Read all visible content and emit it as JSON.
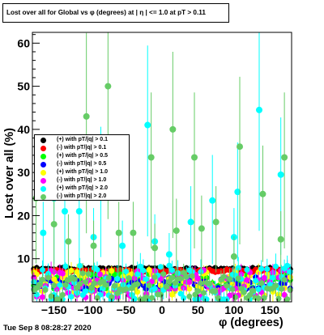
{
  "title": "Lost over all for Global vs φ (degrees) at | η | <= 1.0 at pT > 0.11",
  "timestamp": "Tue Sep  8 08:28:27 2020",
  "chart_data": {
    "type": "scatter",
    "title": "Lost over all for Global vs φ (degrees) at | η | <= 1.0 at pT > 0.11",
    "xlabel": "φ (degrees)",
    "ylabel": "Lost over all (%)",
    "xlim": [
      -180,
      180
    ],
    "ylim": [
      0,
      62.5
    ],
    "xticks": [
      -150,
      -100,
      -50,
      0,
      50,
      100,
      150
    ],
    "yticks": [
      10,
      20,
      30,
      40,
      50,
      60
    ],
    "grid": false,
    "legend_position": "left",
    "series": [
      {
        "name": "(+) with pT/|q| > 0.1",
        "color": "#000000",
        "base": 7.6,
        "amp": 0.3,
        "seed": 1
      },
      {
        "name": "(-) with pT/|q| > 0.1",
        "color": "#ff0000",
        "base": 7.2,
        "amp": 0.3,
        "seed": 2
      },
      {
        "name": "(+) with pT/|q| > 0.5",
        "color": "#00ff00",
        "base": 4.8,
        "amp": 1.8,
        "seed": 3
      },
      {
        "name": "(-) with pT/|q| > 0.5",
        "color": "#0000ff",
        "base": 4.2,
        "amp": 1.5,
        "seed": 4
      },
      {
        "name": "(+) with pT/|q| > 1.0",
        "color": "#ffff00",
        "base": 4.5,
        "amp": 3.0,
        "seed": 5
      },
      {
        "name": "(-) with pT/|q| > 1.0",
        "color": "#ff00ff",
        "base": 4.2,
        "amp": 3.2,
        "seed": 6
      },
      {
        "name": "(+) with pT/|q| > 2.0",
        "color": "#00ffff",
        "base": 4.0,
        "amp": 4.5,
        "seed": 7,
        "peaks": [
          [
            -165,
            16
          ],
          [
            -150,
            24
          ],
          [
            -135,
            21
          ],
          [
            -115,
            21
          ],
          [
            -95,
            15
          ],
          [
            -85,
            28
          ],
          [
            -55,
            13
          ],
          [
            -20,
            41
          ],
          [
            -10,
            14
          ],
          [
            10,
            11
          ],
          [
            40,
            18.5
          ],
          [
            70,
            23.5
          ],
          [
            100,
            15
          ],
          [
            105,
            25.5
          ],
          [
            135,
            44.5
          ],
          [
            165,
            29.5
          ]
        ]
      },
      {
        "name": "(-) with pT/|q| > 2.0",
        "color": "#66cc66",
        "base": 3.5,
        "amp": 3.5,
        "seed": 8,
        "peaks": [
          [
            -175,
            24
          ],
          [
            -150,
            18
          ],
          [
            -130,
            14
          ],
          [
            -105,
            43
          ],
          [
            -95,
            13
          ],
          [
            -75,
            50
          ],
          [
            -60,
            16
          ],
          [
            -40,
            16
          ],
          [
            -15,
            33.5
          ],
          [
            -10,
            12.5
          ],
          [
            15,
            40
          ],
          [
            20,
            16.5
          ],
          [
            45,
            33.5
          ],
          [
            55,
            17
          ],
          [
            75,
            18.5
          ],
          [
            100,
            10.5
          ],
          [
            108,
            36
          ],
          [
            140,
            25
          ],
          [
            165,
            14.5
          ],
          [
            170,
            33.5
          ]
        ]
      }
    ]
  }
}
